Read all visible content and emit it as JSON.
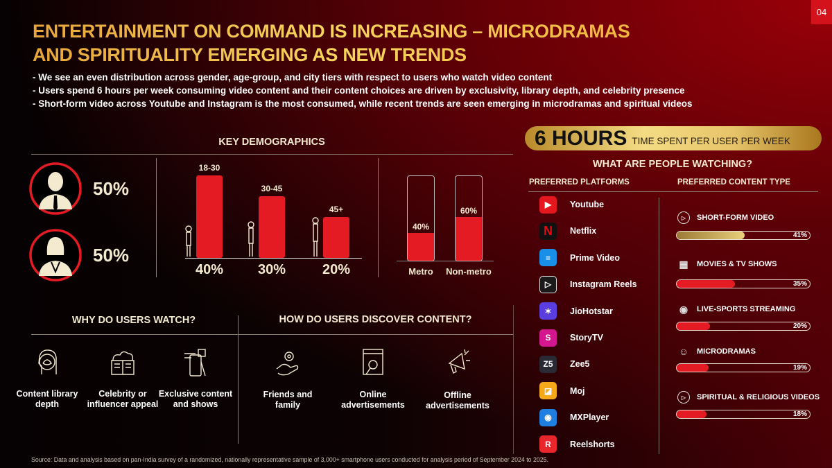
{
  "page_number": "04",
  "title": {
    "line1": "ENTERTAINMENT ON COMMAND IS INCREASING – MICRODRAMAS",
    "line2": "AND SPIRITUALITY EMERGING AS NEW TRENDS"
  },
  "bullets": [
    "- We see an even distribution across gender, age-group, and city tiers with respect to users who watch video content",
    "- Users spend 6 hours per week consuming video content and their content choices are driven by exclusivity, library depth, and celebrity presence",
    "- Short-form video across Youtube and Instagram is the most consumed, while recent trends are seen emerging in microdramas and spiritual videos"
  ],
  "demographics": {
    "heading": "KEY DEMOGRAPHICS",
    "male_pct": "50%",
    "female_pct": "50%"
  },
  "why": {
    "heading": "WHY DO USERS WATCH?",
    "items": [
      {
        "icon": "head-lotus-icon",
        "label": "Content library depth"
      },
      {
        "icon": "book-cloud-icon",
        "label": "Celebrity or influencer appeal"
      },
      {
        "icon": "phone-star-icon",
        "label": "Exclusive content and shows"
      }
    ]
  },
  "discover": {
    "heading": "HOW DO USERS DISCOVER CONTENT?",
    "items": [
      {
        "icon": "hand-gear-icon",
        "label": "Friends and family"
      },
      {
        "icon": "browser-search-icon",
        "label": "Online advertisements"
      },
      {
        "icon": "megaphone-icon",
        "label": "Offline advertisements"
      }
    ]
  },
  "hours": {
    "big": "6 HOURS",
    "small": "TIME SPENT PER USER PER WEEK"
  },
  "watching": {
    "heading": "WHAT ARE PEOPLE WATCHING?",
    "platforms_heading": "PREFERRED PLATFORMS",
    "content_heading": "PREFERRED CONTENT TYPE",
    "platforms": [
      {
        "name": "Youtube",
        "icon": "youtube-icon",
        "color": "#e4161e"
      },
      {
        "name": "Netflix",
        "icon": "netflix-icon",
        "color": "#111111"
      },
      {
        "name": "Prime Video",
        "icon": "prime-video-icon",
        "color": "#1a8fe8"
      },
      {
        "name": "Instagram Reels",
        "icon": "reels-icon",
        "color": "#1a1a1a"
      },
      {
        "name": "JioHotstar",
        "icon": "jiohotstar-icon",
        "color": "#5a3ee0"
      },
      {
        "name": "StoryTV",
        "icon": "storytv-icon",
        "color": "#d3188f"
      },
      {
        "name": "Zee5",
        "icon": "zee5-icon",
        "color": "#2a2a35"
      },
      {
        "name": "Moj",
        "icon": "moj-icon",
        "color": "#f5a81a"
      },
      {
        "name": "MXPlayer",
        "icon": "mxplayer-icon",
        "color": "#1e7fe0"
      },
      {
        "name": "Reelshorts",
        "icon": "reelshorts-icon",
        "color": "#e8262c"
      }
    ]
  },
  "source": "Source: Data and analysis based on pan-India survey of a randomized, nationally representative sample of 3,000+ smartphone users conducted for analysis period of September 2024 to 2025.",
  "colors": {
    "accent_red": "#e41b22",
    "gold": "#f1c24a"
  },
  "chart_data": [
    {
      "type": "pie",
      "name": "gender",
      "categories": [
        "Male",
        "Female"
      ],
      "values": [
        50,
        50
      ],
      "labels": [
        "50%",
        "50%"
      ]
    },
    {
      "type": "bar",
      "name": "age-group",
      "categories": [
        "18-30",
        "30-45",
        "45+"
      ],
      "values": [
        40,
        30,
        20
      ],
      "labels": [
        "40%",
        "30%",
        "20%"
      ],
      "ylim": [
        0,
        40
      ]
    },
    {
      "type": "bar",
      "name": "city-tier",
      "categories": [
        "Metro",
        "Non-metro"
      ],
      "values": [
        40,
        60
      ],
      "labels": [
        "40%",
        "60%"
      ],
      "ylim": [
        0,
        100
      ]
    },
    {
      "type": "bar",
      "name": "content-type",
      "orientation": "horizontal",
      "categories": [
        "SHORT-FORM VIDEO",
        "MOVIES & TV SHOWS",
        "LIVE-SPORTS STREAMING",
        "MICRODRAMAS",
        "SPIRITUAL & RELIGIOUS VIDEOS"
      ],
      "icons": [
        "play-circle-icon",
        "clapperboard-icon",
        "broadcast-icon",
        "theatre-masks-icon",
        "play-circle-icon"
      ],
      "values": [
        41,
        35,
        20,
        19,
        18
      ],
      "labels": [
        "41%",
        "35%",
        "20%",
        "19%",
        "18%"
      ],
      "ylim": [
        0,
        80
      ]
    }
  ]
}
